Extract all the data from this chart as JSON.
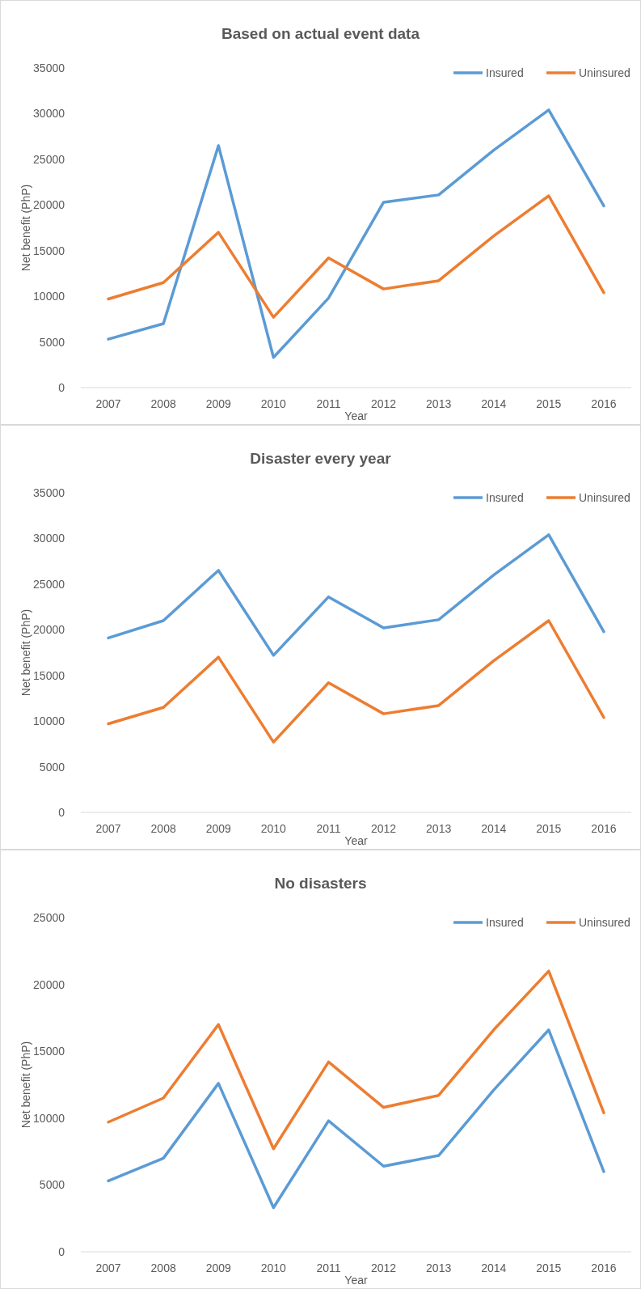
{
  "chart_data": [
    {
      "type": "line",
      "title": "Based on actual event data",
      "xlabel": "Year",
      "ylabel": "Net benefit (PhP)",
      "categories": [
        "2007",
        "2008",
        "2009",
        "2010",
        "2011",
        "2012",
        "2013",
        "2014",
        "2015",
        "2016"
      ],
      "series": [
        {
          "name": "Insured",
          "color": "#5b9bd5",
          "values": [
            5300,
            7000,
            26500,
            3300,
            9800,
            20300,
            21100,
            26000,
            30400,
            19900
          ]
        },
        {
          "name": "Uninsured",
          "color": "#ed7d31",
          "values": [
            9700,
            11500,
            17000,
            7700,
            14200,
            10800,
            11700,
            16600,
            21000,
            10400
          ]
        }
      ],
      "ylim": [
        0,
        35000
      ],
      "yticks": [
        0,
        5000,
        10000,
        15000,
        20000,
        25000,
        30000,
        35000
      ],
      "grid": false,
      "legend": "top right",
      "marker": "none"
    },
    {
      "type": "line",
      "title": "Disaster every year",
      "xlabel": "Year",
      "ylabel": "Net benefit (PhP)",
      "categories": [
        "2007",
        "2008",
        "2009",
        "2010",
        "2011",
        "2012",
        "2013",
        "2014",
        "2015",
        "2016"
      ],
      "series": [
        {
          "name": "Insured",
          "color": "#5b9bd5",
          "values": [
            19100,
            21000,
            26500,
            17200,
            23600,
            20200,
            21100,
            26000,
            30400,
            19800
          ]
        },
        {
          "name": "Uninsured",
          "color": "#ed7d31",
          "values": [
            9700,
            11500,
            17000,
            7700,
            14200,
            10800,
            11700,
            16600,
            21000,
            10400
          ]
        }
      ],
      "ylim": [
        0,
        35000
      ],
      "yticks": [
        0,
        5000,
        10000,
        15000,
        20000,
        25000,
        30000,
        35000
      ],
      "grid": false,
      "legend": "top right",
      "marker": "none"
    },
    {
      "type": "line",
      "title": "No disasters",
      "xlabel": "Year",
      "ylabel": "Net benefit (PhP)",
      "categories": [
        "2007",
        "2008",
        "2009",
        "2010",
        "2011",
        "2012",
        "2013",
        "2014",
        "2015",
        "2016"
      ],
      "series": [
        {
          "name": "Insured",
          "color": "#5b9bd5",
          "values": [
            5300,
            7000,
            12600,
            3300,
            9800,
            6400,
            7200,
            12100,
            16600,
            6000
          ]
        },
        {
          "name": "Uninsured",
          "color": "#ed7d31",
          "values": [
            9700,
            11500,
            17000,
            7700,
            14200,
            10800,
            11700,
            16600,
            21000,
            10400
          ]
        }
      ],
      "ylim": [
        0,
        25000
      ],
      "yticks": [
        0,
        5000,
        10000,
        15000,
        20000,
        25000
      ],
      "grid": false,
      "legend": "top right",
      "marker": "none"
    }
  ]
}
